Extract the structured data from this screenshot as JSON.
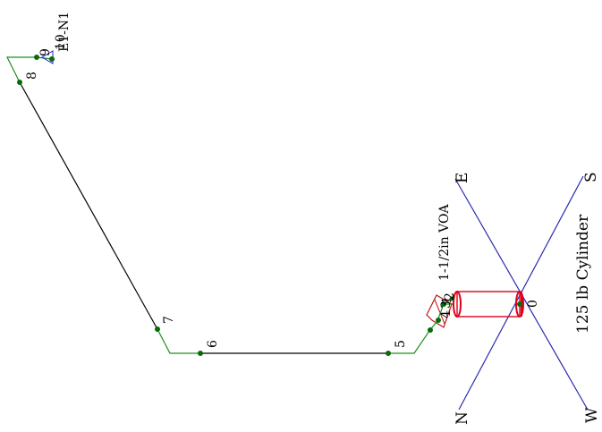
{
  "compass": {
    "east": "E",
    "south": "S",
    "north": "N",
    "west": "W",
    "line_color": "#2b2bb0"
  },
  "cylinder": {
    "label": "125 lb Cylinder",
    "color": "#e0001a"
  },
  "valve": {
    "label": "1-1/2in VOA",
    "color": "#c01818"
  },
  "endpoint": {
    "label": "E1-N1",
    "color": "#1f1fd0"
  },
  "pipe": {
    "segment_color_green": "#1f8f1f",
    "segment_color_black": "#000000",
    "node_color": "#0a6a0a"
  },
  "nodes": [
    {
      "id": "node-0",
      "label": "0"
    },
    {
      "id": "node-1",
      "label": "1"
    },
    {
      "id": "node-2",
      "label": "2"
    },
    {
      "id": "node-3",
      "label": "3"
    },
    {
      "id": "node-4",
      "label": "4"
    },
    {
      "id": "node-5",
      "label": "5"
    },
    {
      "id": "node-6",
      "label": "6"
    },
    {
      "id": "node-7",
      "label": "7"
    },
    {
      "id": "node-8",
      "label": "8"
    },
    {
      "id": "node-9",
      "label": "9"
    },
    {
      "id": "node-10",
      "label": "10"
    }
  ]
}
